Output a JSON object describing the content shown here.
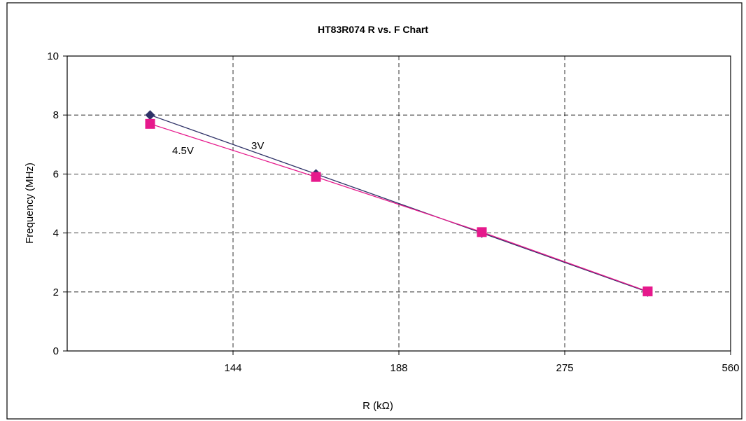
{
  "chart_data": {
    "type": "line",
    "title": "HT83R074  R vs. F Chart",
    "xlabel": "R (kΩ)",
    "ylabel": "Frequency (MHz)",
    "x_tick_labels": [
      "144",
      "188",
      "275",
      "560"
    ],
    "y_ticks": [
      0,
      2,
      4,
      6,
      8,
      10
    ],
    "ylim": [
      0,
      10
    ],
    "grid": true,
    "series": [
      {
        "name": "3V",
        "color": "#2e3167",
        "marker": "diamond",
        "points": [
          {
            "x_index": 0.5,
            "y": 8.0
          },
          {
            "x_index": 1.5,
            "y": 6.0
          },
          {
            "x_index": 2.5,
            "y": 4.0
          },
          {
            "x_index": 3.5,
            "y": 2.0
          }
        ]
      },
      {
        "name": "4.5V",
        "color": "#e6198c",
        "marker": "square",
        "points": [
          {
            "x_index": 0.5,
            "y": 7.7
          },
          {
            "x_index": 1.5,
            "y": 5.9
          },
          {
            "x_index": 2.5,
            "y": 4.03
          },
          {
            "x_index": 3.5,
            "y": 2.02
          }
        ]
      }
    ]
  }
}
